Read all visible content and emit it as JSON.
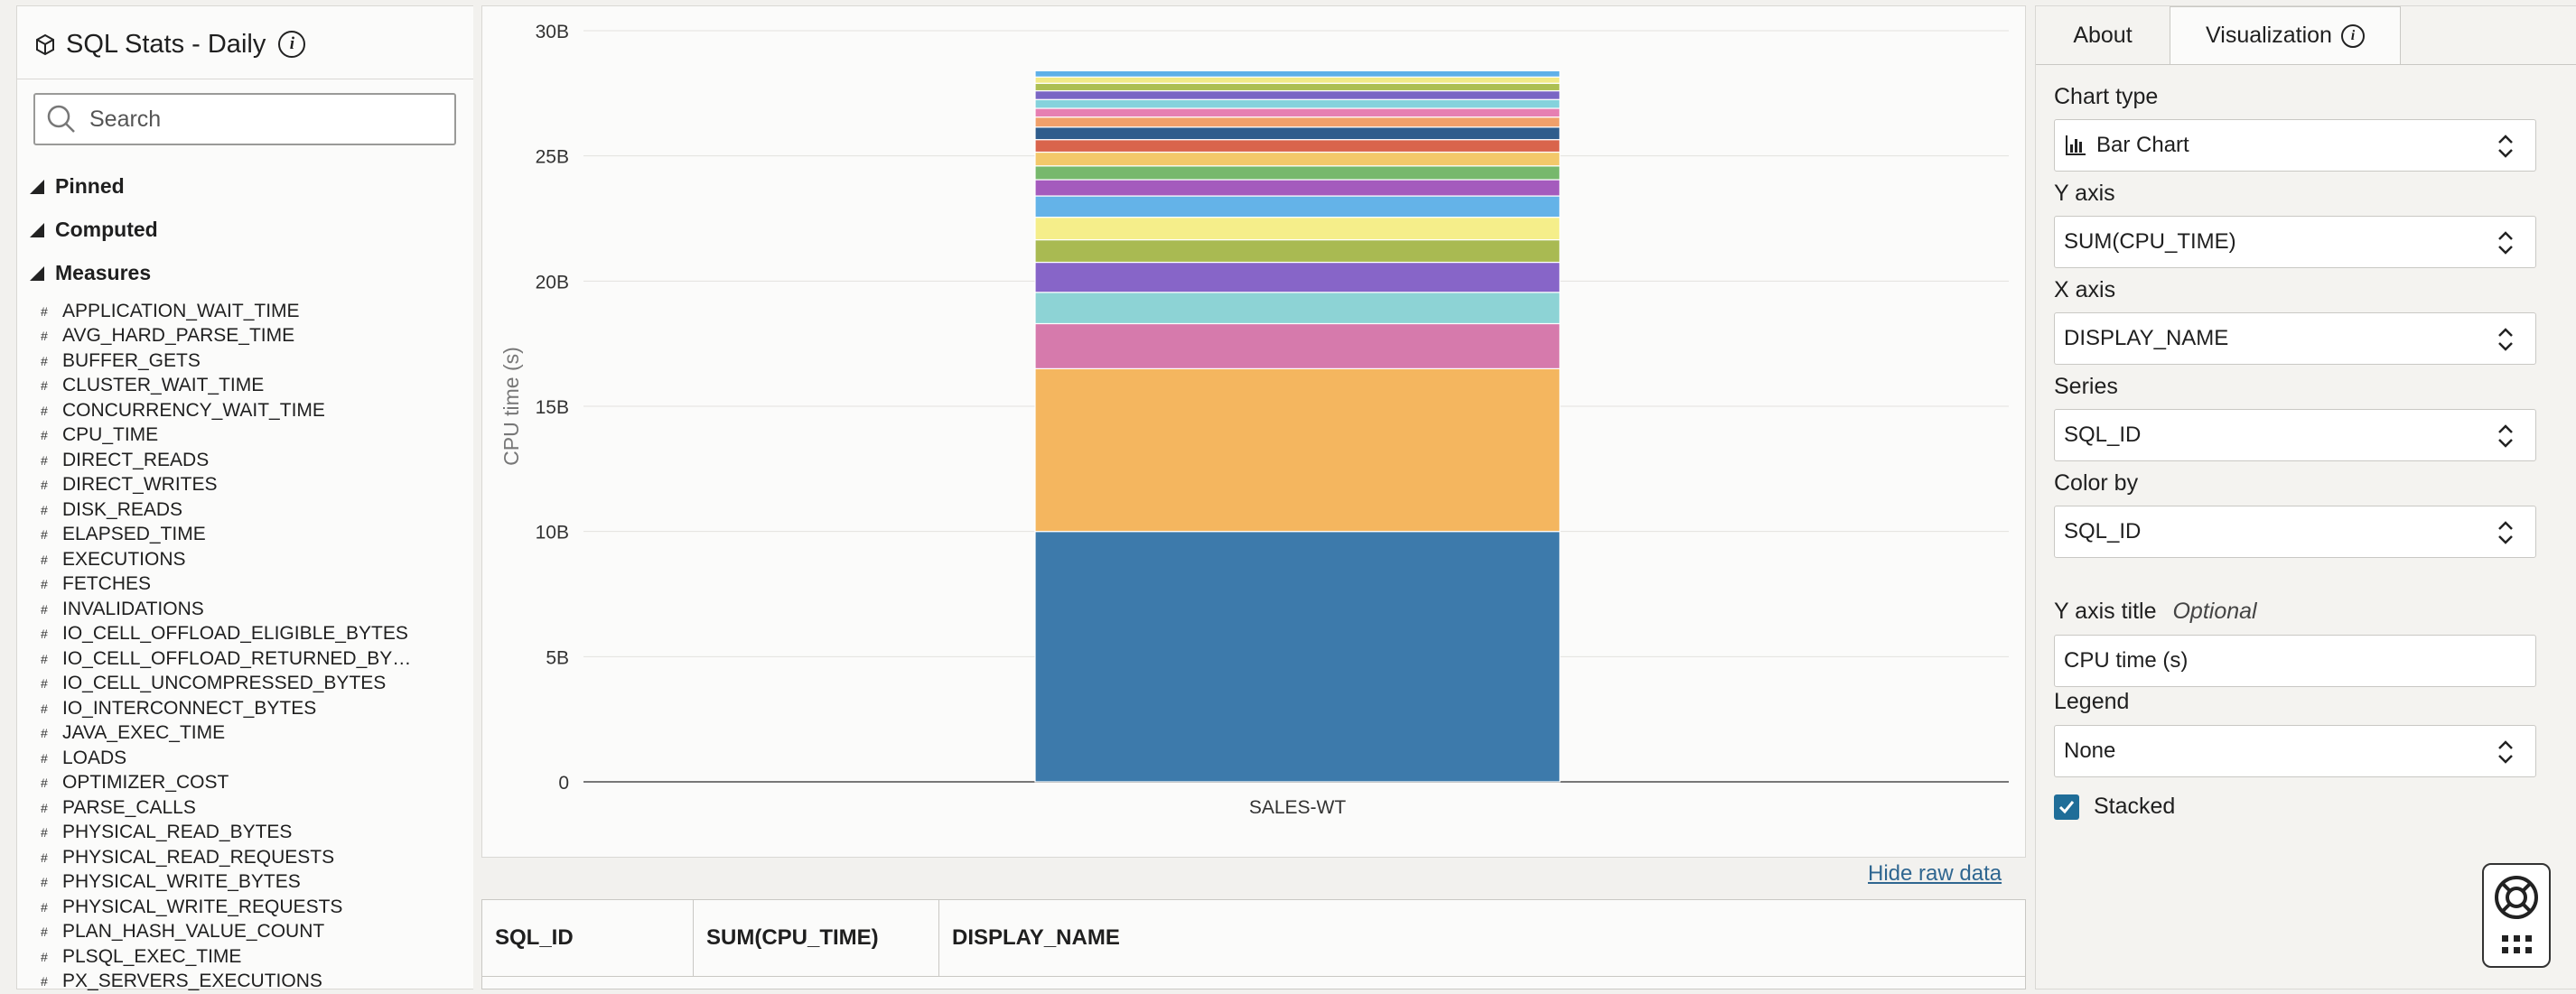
{
  "sidebar": {
    "title": "SQL Stats - Daily",
    "search_placeholder": "Search",
    "sections": {
      "pinned": "Pinned",
      "computed": "Computed",
      "measures": "Measures"
    },
    "measures": [
      "APPLICATION_WAIT_TIME",
      "AVG_HARD_PARSE_TIME",
      "BUFFER_GETS",
      "CLUSTER_WAIT_TIME",
      "CONCURRENCY_WAIT_TIME",
      "CPU_TIME",
      "DIRECT_READS",
      "DIRECT_WRITES",
      "DISK_READS",
      "ELAPSED_TIME",
      "EXECUTIONS",
      "FETCHES",
      "INVALIDATIONS",
      "IO_CELL_OFFLOAD_ELIGIBLE_BYTES",
      "IO_CELL_OFFLOAD_RETURNED_BY…",
      "IO_CELL_UNCOMPRESSED_BYTES",
      "IO_INTERCONNECT_BYTES",
      "JAVA_EXEC_TIME",
      "LOADS",
      "OPTIMIZER_COST",
      "PARSE_CALLS",
      "PHYSICAL_READ_BYTES",
      "PHYSICAL_READ_REQUESTS",
      "PHYSICAL_WRITE_BYTES",
      "PHYSICAL_WRITE_REQUESTS",
      "PLAN_HASH_VALUE_COUNT",
      "PLSQL_EXEC_TIME",
      "PX_SERVERS_EXECUTIONS"
    ]
  },
  "chart_data": {
    "type": "bar",
    "stacked": true,
    "categories": [
      "SALES-WT"
    ],
    "ylabel": "CPU time (s)",
    "ylim": [
      0,
      30000000000
    ],
    "yticks": [
      "0",
      "5B",
      "10B",
      "15B",
      "20B",
      "25B",
      "30B"
    ],
    "grid": true,
    "legend": "none",
    "segments": [
      {
        "value": 10000000000,
        "color": "#3d7aab"
      },
      {
        "value": 6500000000,
        "color": "#f4b65f"
      },
      {
        "value": 1800000000,
        "color": "#d67aac"
      },
      {
        "value": 1250000000,
        "color": "#8dd3d5"
      },
      {
        "value": 1200000000,
        "color": "#8765c8"
      },
      {
        "value": 900000000,
        "color": "#a9ba52"
      },
      {
        "value": 900000000,
        "color": "#f5ee8a"
      },
      {
        "value": 850000000,
        "color": "#64b3e8"
      },
      {
        "value": 650000000,
        "color": "#a45bbd"
      },
      {
        "value": 550000000,
        "color": "#77b86c"
      },
      {
        "value": 550000000,
        "color": "#f3c86a"
      },
      {
        "value": 500000000,
        "color": "#d9644c"
      },
      {
        "value": 500000000,
        "color": "#2f5d8c"
      },
      {
        "value": 400000000,
        "color": "#f0a06a"
      },
      {
        "value": 350000000,
        "color": "#e67fb2"
      },
      {
        "value": 350000000,
        "color": "#85d2dc"
      },
      {
        "value": 350000000,
        "color": "#7a66c4"
      },
      {
        "value": 300000000,
        "color": "#adbf52"
      },
      {
        "value": 250000000,
        "color": "#f2ea88"
      },
      {
        "value": 250000000,
        "color": "#5fb0e8"
      }
    ]
  },
  "actions": {
    "hide_raw": "Hide raw data"
  },
  "table": {
    "columns": [
      "SQL_ID",
      "SUM(CPU_TIME)",
      "DISPLAY_NAME"
    ]
  },
  "right": {
    "tabs": {
      "about": "About",
      "visualization": "Visualization"
    },
    "chart_type": {
      "label": "Chart type",
      "value": "Bar Chart"
    },
    "y_axis": {
      "label": "Y axis",
      "value": "SUM(CPU_TIME)"
    },
    "x_axis": {
      "label": "X axis",
      "value": "DISPLAY_NAME"
    },
    "series": {
      "label": "Series",
      "value": "SQL_ID"
    },
    "color_by": {
      "label": "Color by",
      "value": "SQL_ID"
    },
    "y_title": {
      "label": "Y axis title",
      "optional": "Optional",
      "value": "CPU time (s)"
    },
    "legend": {
      "label": "Legend",
      "value": "None"
    },
    "stacked": {
      "label": "Stacked",
      "checked": true
    }
  }
}
